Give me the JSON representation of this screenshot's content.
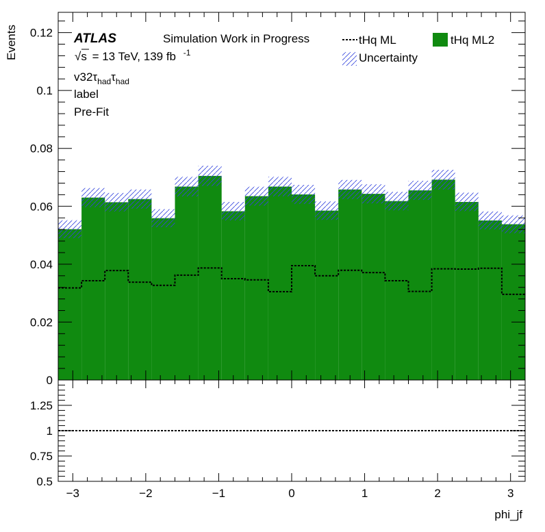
{
  "labels": {
    "atlas": "ATLAS",
    "status": "Simulation Work in Progress",
    "sqrt": "√s",
    "energy": "= 13 TeV, 139 fb",
    "lumi_exp": "-1",
    "region_prefix": "v32",
    "tau": "τ",
    "had": "had",
    "line3": "label",
    "line4": "Pre-Fit"
  },
  "chart_data": [
    {
      "type": "bar",
      "ylabel": "Events",
      "xlabel": "",
      "xlim": [
        -3.2,
        3.2
      ],
      "ylim": [
        0,
        0.127
      ],
      "x_ticks": [
        "−3",
        "−2",
        "−1",
        "0",
        "1",
        "2",
        "3"
      ],
      "y_ticks": [
        "0",
        "0.02",
        "0.04",
        "0.06",
        "0.08",
        "0.1",
        "0.12"
      ],
      "bin_edges": [
        -3.2,
        -2.88,
        -2.56,
        -2.24,
        -1.92,
        -1.6,
        -1.28,
        -0.96,
        -0.64,
        -0.32,
        0.0,
        0.32,
        0.64,
        0.96,
        1.28,
        1.6,
        1.92,
        2.24,
        2.56,
        2.88,
        3.2
      ],
      "series": [
        {
          "name": "tHq ML2",
          "style": "filled",
          "color": "#108a10",
          "values": [
            0.0521,
            0.063,
            0.0614,
            0.0625,
            0.0559,
            0.0668,
            0.0705,
            0.0583,
            0.0635,
            0.0668,
            0.0641,
            0.0585,
            0.0658,
            0.0643,
            0.0618,
            0.0655,
            0.0692,
            0.0615,
            0.0551,
            0.0538
          ]
        },
        {
          "name": "tHq ML",
          "style": "dashed-step",
          "color": "#000000",
          "values": [
            0.0318,
            0.0343,
            0.0378,
            0.0338,
            0.0327,
            0.0362,
            0.0387,
            0.035,
            0.0346,
            0.0305,
            0.0395,
            0.036,
            0.0379,
            0.0371,
            0.0343,
            0.0306,
            0.0384,
            0.0383,
            0.0386,
            0.0296
          ]
        }
      ],
      "uncertainty": {
        "name": "Uncertainty",
        "color": "#3344dd",
        "half_width": [
          0.0031,
          0.0033,
          0.0032,
          0.0033,
          0.0031,
          0.0034,
          0.0035,
          0.0032,
          0.0033,
          0.0034,
          0.0033,
          0.0032,
          0.0033,
          0.0033,
          0.0032,
          0.0033,
          0.0034,
          0.0032,
          0.0031,
          0.0031
        ]
      },
      "legend": "top-right"
    },
    {
      "type": "line",
      "xlabel": "phi_jf",
      "ylabel": "",
      "xlim": [
        -3.2,
        3.2
      ],
      "ylim": [
        0.5,
        1.5
      ],
      "x_ticks": [
        "−3",
        "−2",
        "−1",
        "0",
        "1",
        "2",
        "3"
      ],
      "y_ticks": [
        "0.5",
        "0.75",
        "1",
        "1.25"
      ],
      "reference_line": 1,
      "grid": false
    }
  ]
}
